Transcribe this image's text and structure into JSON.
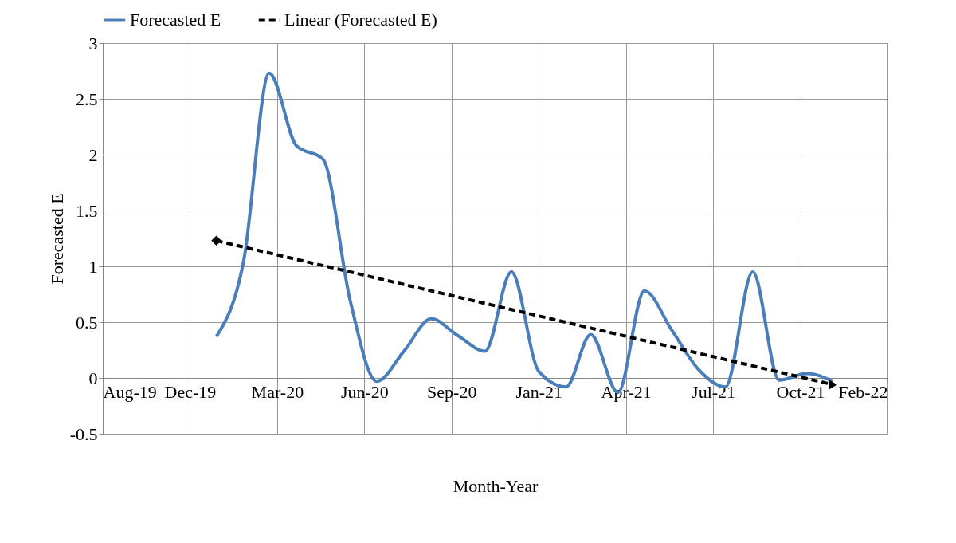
{
  "chart_data": {
    "type": "line",
    "xlabel": "Month-Year",
    "ylabel": "Forecasted E",
    "x": [
      "2020-01",
      "2020-02",
      "2020-03",
      "2020-04",
      "2020-05",
      "2020-06",
      "2020-07",
      "2020-08",
      "2020-09",
      "2020-10",
      "2020-11",
      "2020-12",
      "2021-01",
      "2021-02",
      "2021-03",
      "2021-04",
      "2021-05",
      "2021-06",
      "2021-07",
      "2021-08",
      "2021-09",
      "2021-10",
      "2021-11",
      "2021-12"
    ],
    "series": [
      {
        "name": "Forecasted E",
        "color": "#4a7ebb",
        "line_style": "solid",
        "values": [
          0.37,
          1.05,
          2.73,
          2.08,
          1.96,
          0.69,
          -0.03,
          0.24,
          0.53,
          0.38,
          0.24,
          0.95,
          0.06,
          -0.08,
          0.39,
          -0.13,
          0.78,
          0.43,
          0.08,
          -0.08,
          0.95,
          -0.02,
          0.04,
          -0.03
        ]
      },
      {
        "name": "Linear (Forecasted E)",
        "type": "line",
        "color": "#000000",
        "line_style": "dashed",
        "marker": "diamond",
        "x": [
          "2020-01",
          "2021-12"
        ],
        "values": [
          1.23,
          -0.06
        ]
      }
    ],
    "xlim": [
      "2019-08-25",
      "2022-02-01"
    ],
    "xticks": [
      {
        "value": "2019-08-25",
        "label": "Aug-19"
      },
      {
        "value": "2019-12-02",
        "label": "Dec-19"
      },
      {
        "value": "2020-03-10",
        "label": "Mar-20"
      },
      {
        "value": "2020-06-17",
        "label": "Jun-20"
      },
      {
        "value": "2020-09-24",
        "label": "Sep-20"
      },
      {
        "value": "2021-01-01",
        "label": "Jan-21"
      },
      {
        "value": "2021-04-10",
        "label": "Apr-21"
      },
      {
        "value": "2021-07-18",
        "label": "Jul-21"
      },
      {
        "value": "2021-10-25",
        "label": "Oct-21"
      },
      {
        "value": "2022-02-01",
        "label": "Feb-22"
      }
    ],
    "ylim": [
      -0.5,
      3
    ],
    "yticks": [
      -0.5,
      0,
      0.5,
      1,
      1.5,
      2,
      2.5,
      3
    ],
    "grid": true,
    "legend": "top",
    "marker": "none"
  }
}
